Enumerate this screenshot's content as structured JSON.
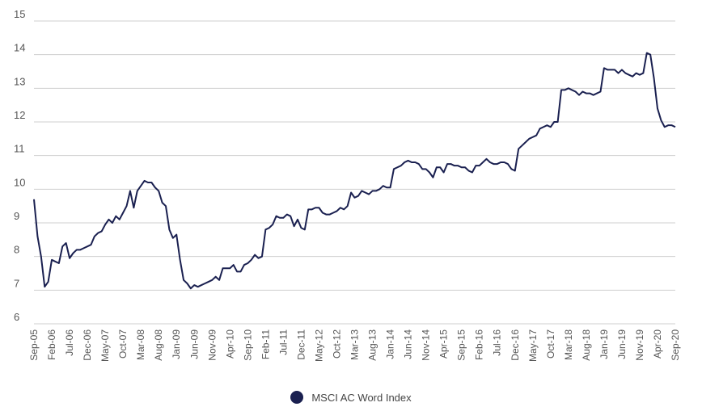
{
  "chart_data": {
    "type": "line",
    "title": "",
    "xlabel": "",
    "ylabel": "",
    "ylim": [
      6,
      15
    ],
    "yticks": [
      "6",
      "7",
      "8",
      "9",
      "10",
      "11",
      "12",
      "13",
      "14",
      "15"
    ],
    "x_tick_labels": [
      "Sep-05",
      "Feb-06",
      "Jul-06",
      "Dec-06",
      "May-07",
      "Oct-07",
      "Mar-08",
      "Aug-08",
      "Jan-09",
      "Jun-09",
      "Nov-09",
      "Apr-10",
      "Sep-10",
      "Feb-11",
      "Jul-11",
      "Dec-11",
      "May-12",
      "Oct-12",
      "Mar-13",
      "Aug-13",
      "Jan-14",
      "Jun-14",
      "Nov-14",
      "Apr-15",
      "Sep-15",
      "Feb-16",
      "Jul-16",
      "Dec-16",
      "May-17",
      "Oct-17",
      "Mar-18",
      "Aug-18",
      "Jan-19",
      "Jun-19",
      "Nov-19",
      "Apr-20",
      "Sep-20"
    ],
    "grid": true,
    "legend_position": "bottom-center",
    "series": [
      {
        "name": "MSCI AC Word Index",
        "color": "#1a2050",
        "values": [
          9.7,
          8.6,
          8.0,
          7.1,
          7.25,
          7.9,
          7.85,
          7.8,
          8.3,
          8.4,
          7.95,
          8.1,
          8.2,
          8.2,
          8.25,
          8.3,
          8.35,
          8.6,
          8.7,
          8.75,
          8.95,
          9.1,
          9.0,
          9.2,
          9.1,
          9.3,
          9.5,
          9.95,
          9.45,
          9.95,
          10.1,
          10.25,
          10.2,
          10.2,
          10.05,
          9.95,
          9.6,
          9.5,
          8.8,
          8.55,
          8.65,
          7.9,
          7.3,
          7.2,
          7.05,
          7.15,
          7.1,
          7.15,
          7.2,
          7.25,
          7.3,
          7.4,
          7.3,
          7.65,
          7.65,
          7.65,
          7.75,
          7.55,
          7.55,
          7.75,
          7.8,
          7.9,
          8.05,
          7.95,
          8.0,
          8.8,
          8.85,
          8.95,
          9.2,
          9.15,
          9.15,
          9.25,
          9.2,
          8.9,
          9.1,
          8.85,
          8.8,
          9.4,
          9.4,
          9.45,
          9.45,
          9.3,
          9.25,
          9.25,
          9.3,
          9.35,
          9.45,
          9.4,
          9.5,
          9.9,
          9.75,
          9.8,
          9.95,
          9.9,
          9.85,
          9.95,
          9.95,
          10.0,
          10.1,
          10.05,
          10.05,
          10.6,
          10.65,
          10.7,
          10.8,
          10.85,
          10.8,
          10.8,
          10.75,
          10.6,
          10.6,
          10.5,
          10.35,
          10.65,
          10.65,
          10.5,
          10.75,
          10.75,
          10.7,
          10.7,
          10.65,
          10.65,
          10.55,
          10.5,
          10.7,
          10.7,
          10.8,
          10.9,
          10.8,
          10.75,
          10.75,
          10.8,
          10.8,
          10.75,
          10.6,
          10.55,
          11.2,
          11.3,
          11.4,
          11.5,
          11.55,
          11.6,
          11.8,
          11.85,
          11.9,
          11.85,
          12.0,
          12.0,
          12.95,
          12.95,
          13.0,
          12.95,
          12.9,
          12.8,
          12.9,
          12.85,
          12.85,
          12.8,
          12.85,
          12.9,
          13.6,
          13.55,
          13.55,
          13.55,
          13.45,
          13.55,
          13.45,
          13.4,
          13.35,
          13.45,
          13.4,
          13.45,
          14.05,
          14.0,
          13.3,
          12.4,
          12.05,
          11.85,
          11.9,
          11.9,
          11.85
        ]
      }
    ]
  }
}
